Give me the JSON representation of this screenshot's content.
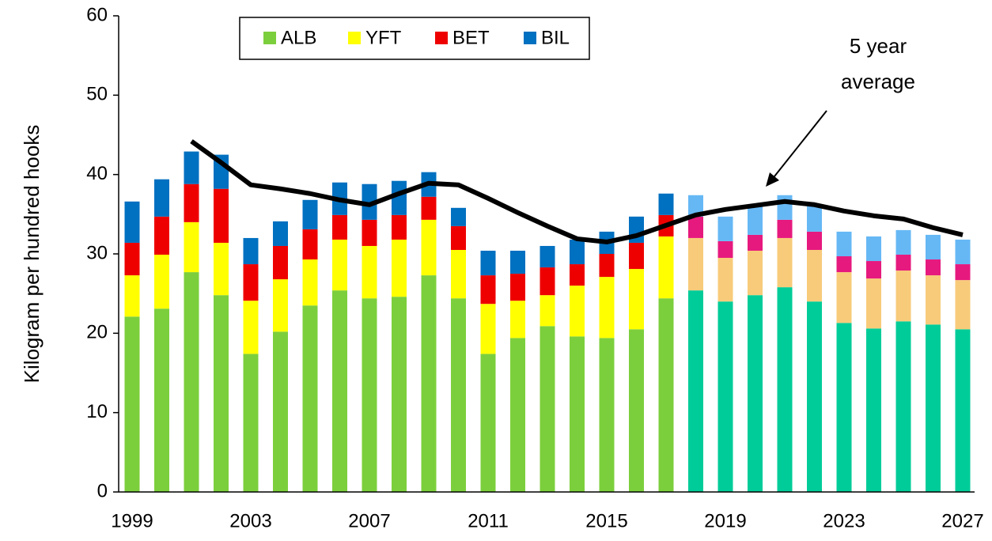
{
  "chart_data": {
    "type": "stacked_bar_line",
    "ylabel": "Kilogram per hundred hooks",
    "annotation": [
      "5 year",
      "average"
    ],
    "categories": [
      "1999",
      null,
      null,
      null,
      "2003",
      null,
      null,
      null,
      "2007",
      null,
      null,
      null,
      "2011",
      null,
      null,
      null,
      "2015",
      null,
      null,
      null,
      "2019",
      null,
      null,
      null,
      "2023",
      null,
      null,
      null,
      "2027"
    ],
    "ylim": [
      0,
      60
    ],
    "yticks": [
      0,
      10,
      20,
      30,
      40,
      50,
      60
    ],
    "grid": false,
    "legend": "top",
    "series": [
      {
        "name": "ALB",
        "color": "#7ccf3c",
        "colors": [
          "#7ccf3c",
          "#7ccf3c",
          "#7ccf3c",
          "#7ccf3c",
          "#7ccf3c",
          "#7ccf3c",
          "#7ccf3c",
          "#7ccf3c",
          "#7ccf3c",
          "#7ccf3c",
          "#7ccf3c",
          "#7ccf3c",
          "#7ccf3c",
          "#7ccf3c",
          "#7ccf3c",
          "#7ccf3c",
          "#7ccf3c",
          "#7ccf3c",
          "#7ccf3c",
          "#00cc99",
          "#00cc99",
          "#00cc99",
          "#00cc99",
          "#00cc99",
          "#00cc99",
          "#00cc99",
          "#00cc99",
          "#00cc99",
          "#00cc99"
        ],
        "values": [
          22.1,
          23.1,
          27.7,
          24.8,
          17.4,
          20.2,
          23.5,
          25.4,
          24.4,
          24.6,
          27.3,
          24.4,
          17.4,
          19.4,
          20.9,
          19.6,
          19.4,
          20.5,
          24.4,
          25.4,
          24.0,
          24.8,
          25.8,
          24.0,
          21.3,
          20.6,
          21.5,
          21.1,
          20.5
        ]
      },
      {
        "name": "YFT",
        "color": "#ffff00",
        "colors": [
          "#ffff00",
          "#ffff00",
          "#ffff00",
          "#ffff00",
          "#ffff00",
          "#ffff00",
          "#ffff00",
          "#ffff00",
          "#ffff00",
          "#ffff00",
          "#ffff00",
          "#ffff00",
          "#ffff00",
          "#ffff00",
          "#ffff00",
          "#ffff00",
          "#ffff00",
          "#ffff00",
          "#ffff00",
          "#f8cb7a",
          "#f8cb7a",
          "#f8cb7a",
          "#f8cb7a",
          "#f8cb7a",
          "#f8cb7a",
          "#f8cb7a",
          "#f8cb7a",
          "#f8cb7a",
          "#f8cb7a"
        ],
        "values": [
          5.2,
          6.8,
          6.3,
          6.6,
          6.7,
          6.6,
          5.8,
          6.4,
          6.6,
          7.2,
          7.0,
          6.1,
          6.3,
          4.7,
          3.9,
          6.4,
          7.7,
          7.6,
          7.8,
          6.6,
          5.5,
          5.6,
          6.2,
          6.5,
          6.4,
          6.3,
          6.4,
          6.2,
          6.2
        ]
      },
      {
        "name": "BET",
        "color": "#ee0000",
        "colors": [
          "#ee0000",
          "#ee0000",
          "#ee0000",
          "#ee0000",
          "#ee0000",
          "#ee0000",
          "#ee0000",
          "#ee0000",
          "#ee0000",
          "#ee0000",
          "#ee0000",
          "#ee0000",
          "#ee0000",
          "#ee0000",
          "#ee0000",
          "#ee0000",
          "#ee0000",
          "#ee0000",
          "#ee0000",
          "#e6197e",
          "#e6197e",
          "#e6197e",
          "#e6197e",
          "#e6197e",
          "#e6197e",
          "#e6197e",
          "#e6197e",
          "#e6197e",
          "#e6197e"
        ],
        "values": [
          4.1,
          4.8,
          4.8,
          6.8,
          4.6,
          4.2,
          3.8,
          3.1,
          3.3,
          3.1,
          2.9,
          3.0,
          3.6,
          3.4,
          3.5,
          2.7,
          2.9,
          3.3,
          2.7,
          2.7,
          2.1,
          2.0,
          2.3,
          2.3,
          2.0,
          2.2,
          2.0,
          2.0,
          2.0
        ]
      },
      {
        "name": "BIL",
        "color": "#0070c0",
        "colors": [
          "#0070c0",
          "#0070c0",
          "#0070c0",
          "#0070c0",
          "#0070c0",
          "#0070c0",
          "#0070c0",
          "#0070c0",
          "#0070c0",
          "#0070c0",
          "#0070c0",
          "#0070c0",
          "#0070c0",
          "#0070c0",
          "#0070c0",
          "#0070c0",
          "#0070c0",
          "#0070c0",
          "#0070c0",
          "#66b8f5",
          "#66b8f5",
          "#66b8f5",
          "#66b8f5",
          "#66b8f5",
          "#66b8f5",
          "#66b8f5",
          "#66b8f5",
          "#66b8f5",
          "#66b8f5"
        ],
        "values": [
          5.2,
          4.7,
          4.1,
          4.3,
          3.3,
          3.1,
          3.7,
          4.1,
          4.5,
          4.3,
          3.1,
          2.3,
          3.1,
          2.9,
          2.7,
          3.1,
          2.8,
          3.3,
          2.7,
          2.7,
          3.1,
          3.8,
          3.1,
          3.4,
          3.1,
          3.1,
          3.1,
          3.1,
          3.1
        ]
      }
    ],
    "line": {
      "color": "#000000",
      "values": [
        null,
        null,
        44.2,
        41.5,
        38.7,
        38.2,
        37.6,
        36.8,
        36.2,
        37.6,
        38.9,
        38.7,
        37.0,
        35.2,
        33.5,
        31.9,
        31.5,
        32.3,
        33.6,
        34.9,
        35.6,
        36.1,
        36.6,
        36.2,
        35.4,
        34.8,
        34.4,
        33.3,
        32.4
      ]
    }
  }
}
